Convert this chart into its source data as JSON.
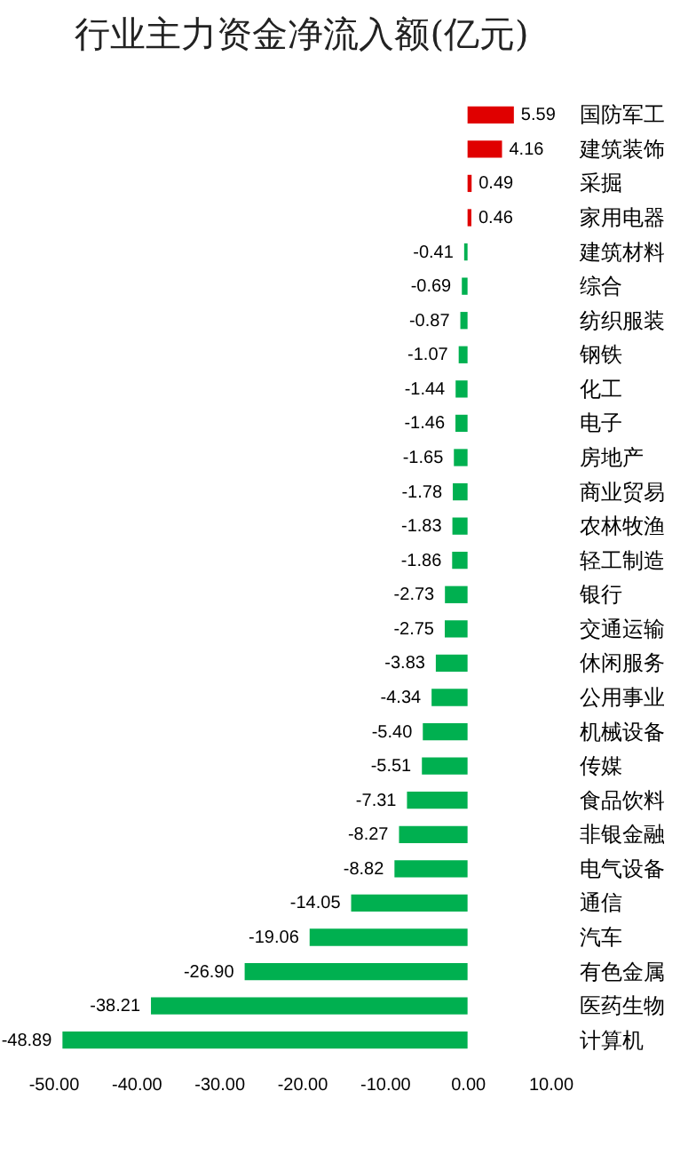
{
  "chart_data": {
    "type": "bar",
    "orientation": "horizontal",
    "title": "行业主力资金净流入额(亿元)",
    "categories": [
      "国防军工",
      "建筑装饰",
      "采掘",
      "家用电器",
      "建筑材料",
      "综合",
      "纺织服装",
      "钢铁",
      "化工",
      "电子",
      "房地产",
      "商业贸易",
      "农林牧渔",
      "轻工制造",
      "银行",
      "交通运输",
      "休闲服务",
      "公用事业",
      "机械设备",
      "传媒",
      "食品饮料",
      "非银金融",
      "电气设备",
      "通信",
      "汽车",
      "有色金属",
      "医药生物",
      "计算机"
    ],
    "values": [
      5.59,
      4.16,
      0.49,
      0.46,
      -0.41,
      -0.69,
      -0.87,
      -1.07,
      -1.44,
      -1.46,
      -1.65,
      -1.78,
      -1.83,
      -1.86,
      -2.73,
      -2.75,
      -3.83,
      -4.34,
      -5.4,
      -5.51,
      -7.31,
      -8.27,
      -8.82,
      -14.05,
      -19.06,
      -26.9,
      -38.21,
      -48.89
    ],
    "value_labels": [
      "5.59",
      "4.16",
      "0.49",
      "0.46",
      "-0.41",
      "-0.69",
      "-0.87",
      "-1.07",
      "-1.44",
      "-1.46",
      "-1.65",
      "-1.78",
      "-1.83",
      "-1.86",
      "-2.73",
      "-2.75",
      "-3.83",
      "-4.34",
      "-5.40",
      "-5.51",
      "-7.31",
      "-8.27",
      "-8.82",
      "-14.05",
      "-19.06",
      "-26.90",
      "-38.21",
      "-48.89"
    ],
    "colors": [
      "#e00000",
      "#e00000",
      "#e00000",
      "#e00000",
      "#00b050",
      "#00b050",
      "#00b050",
      "#00b050",
      "#00b050",
      "#00b050",
      "#00b050",
      "#00b050",
      "#00b050",
      "#00b050",
      "#00b050",
      "#00b050",
      "#00b050",
      "#00b050",
      "#00b050",
      "#00b050",
      "#00b050",
      "#00b050",
      "#00b050",
      "#00b050",
      "#00b050",
      "#00b050",
      "#00b050",
      "#00b050"
    ],
    "xlim": [
      -50,
      10
    ],
    "xticks": [
      {
        "value": -50,
        "label": "-50.00"
      },
      {
        "value": -40,
        "label": "-40.00"
      },
      {
        "value": -30,
        "label": "-30.00"
      },
      {
        "value": -20,
        "label": "-20.00"
      },
      {
        "value": -10,
        "label": "-10.00"
      },
      {
        "value": 0,
        "label": "0.00"
      },
      {
        "value": 10,
        "label": "10.00"
      }
    ],
    "tick_labels": true
  }
}
